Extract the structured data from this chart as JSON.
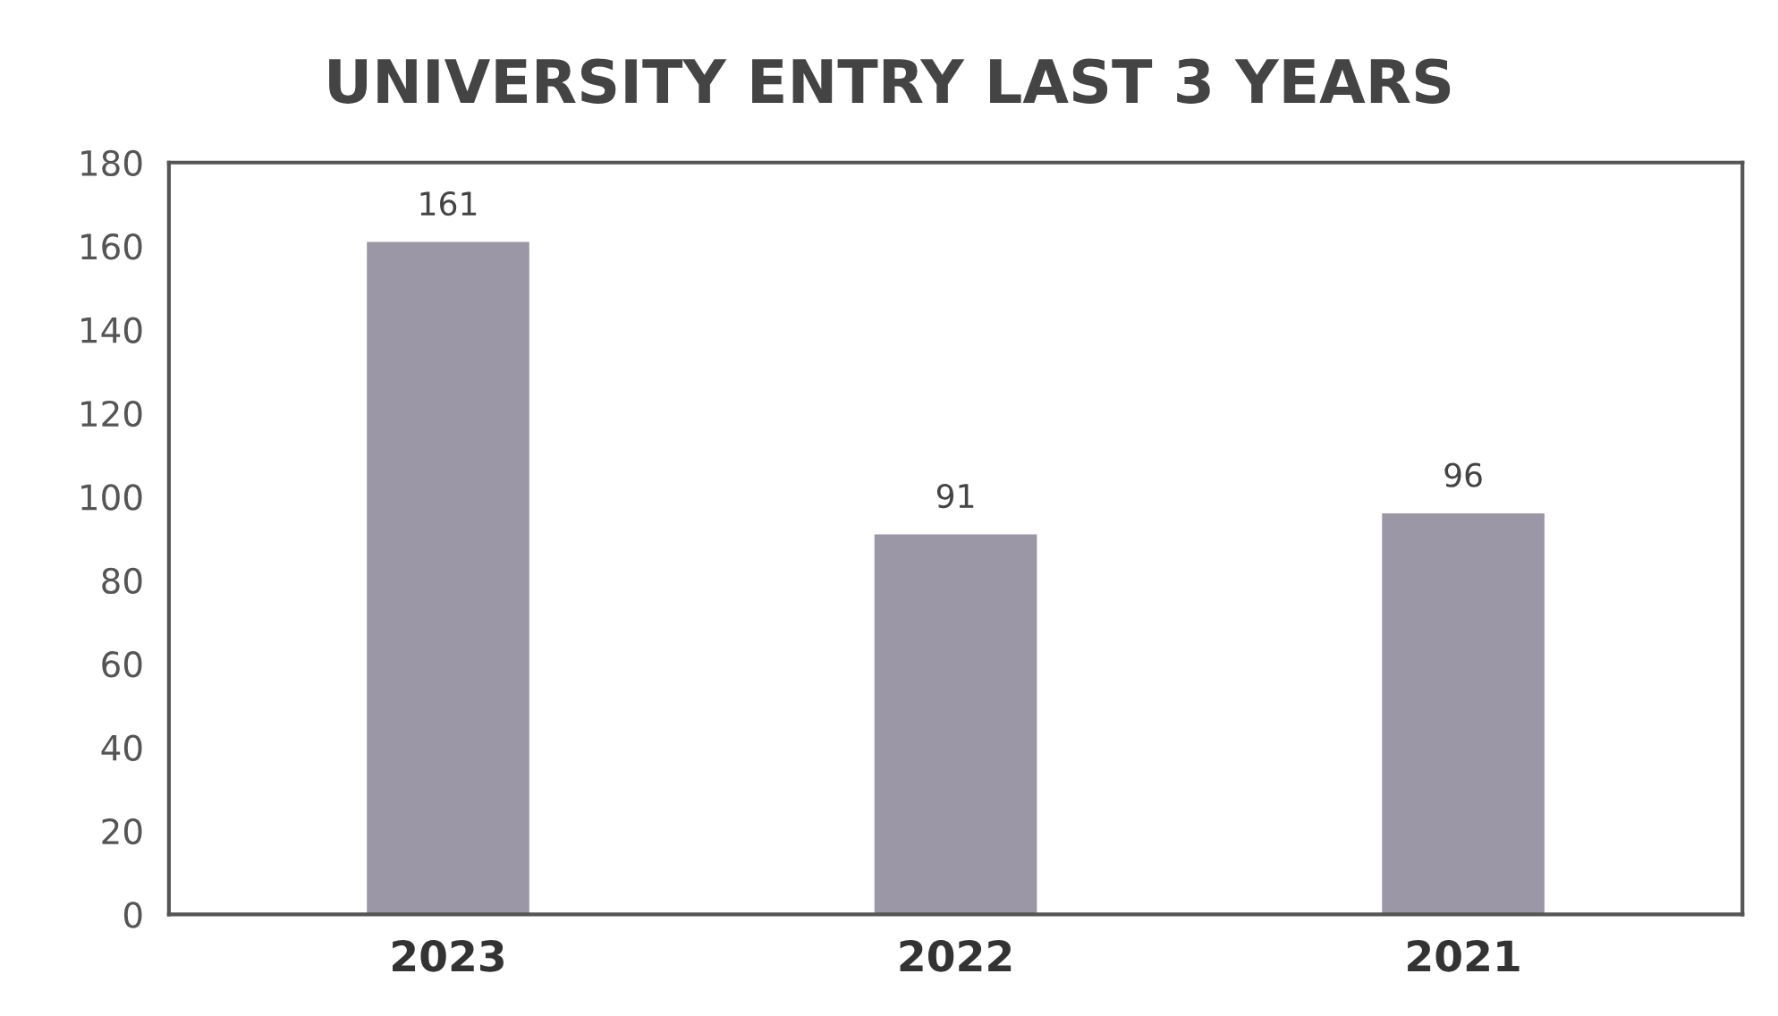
{
  "chart_data": {
    "type": "bar",
    "title": "UNIVERSITY ENTRY LAST 3 YEARS",
    "categories": [
      "2023",
      "2022",
      "2021"
    ],
    "values": [
      161,
      91,
      96
    ],
    "color": "#9b97a6",
    "ylim": [
      0,
      180
    ],
    "yticks": [
      0,
      20,
      40,
      60,
      80,
      100,
      120,
      140,
      160,
      180
    ],
    "data_labels": true,
    "grid": false,
    "legend": false
  }
}
